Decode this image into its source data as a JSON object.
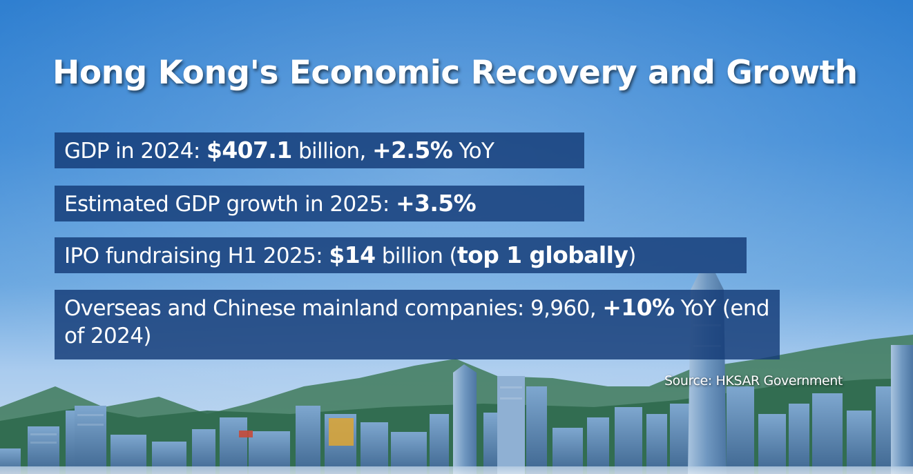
{
  "title": "Hong Kong's Economic Recovery and Growth",
  "stats": [
    {
      "parts": [
        {
          "text": "GDP in 2024: ",
          "bold": false
        },
        {
          "text": "$407.1",
          "bold": true
        },
        {
          "text": " billion, ",
          "bold": false
        },
        {
          "text": "+2.5%",
          "bold": true
        },
        {
          "text": " YoY",
          "bold": false
        }
      ]
    },
    {
      "parts": [
        {
          "text": "Estimated GDP growth in 2025: ",
          "bold": false
        },
        {
          "text": "+3.5%",
          "bold": true
        }
      ]
    },
    {
      "parts": [
        {
          "text": "IPO fundraising H1 2025: ",
          "bold": false
        },
        {
          "text": "$14",
          "bold": true
        },
        {
          "text": " billion (",
          "bold": false
        },
        {
          "text": "top 1 globally",
          "bold": true
        },
        {
          "text": ")",
          "bold": false
        }
      ]
    },
    {
      "parts": [
        {
          "text": "Overseas and Chinese mainland companies: 9,960, ",
          "bold": false
        },
        {
          "text": "+10%",
          "bold": true
        },
        {
          "text": " YoY (end of 2024)",
          "bold": false
        }
      ]
    }
  ],
  "source": "Source: HKSAR Government",
  "colors": {
    "sky": "#3d8ad6",
    "panel": "#143a76",
    "text": "#ffffff"
  }
}
